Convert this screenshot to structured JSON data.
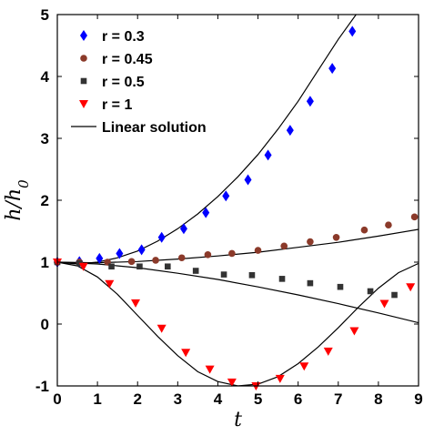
{
  "chart_data": {
    "type": "scatter",
    "xlabel": "t",
    "ylabel": "h/h0",
    "xlim": [
      0,
      9
    ],
    "ylim": [
      -1,
      5
    ],
    "xticks": [
      0,
      1,
      2,
      3,
      4,
      5,
      6,
      7,
      8,
      9
    ],
    "yticks": [
      -1,
      0,
      1,
      2,
      3,
      4,
      5
    ],
    "grid": false,
    "legend_position": "top-left",
    "series": [
      {
        "name": "r = 0.3",
        "marker": "diamond",
        "color": "#0000ff",
        "x": [
          0,
          0.55,
          1.05,
          1.55,
          2.1,
          2.6,
          3.15,
          3.7,
          4.2,
          4.75,
          5.25,
          5.8,
          6.3,
          6.85,
          7.35
        ],
        "y": [
          1.0,
          1.01,
          1.06,
          1.14,
          1.2,
          1.4,
          1.54,
          1.8,
          2.07,
          2.33,
          2.73,
          3.13,
          3.6,
          4.13,
          4.73
        ]
      },
      {
        "name": "r = 0.45",
        "marker": "circle",
        "color": "#8b3a2a",
        "x": [
          0,
          0.55,
          1.25,
          1.85,
          2.45,
          3.1,
          3.75,
          4.35,
          5.0,
          5.65,
          6.3,
          6.95,
          7.65,
          8.25,
          8.9
        ],
        "y": [
          1.0,
          1.0,
          1.0,
          1.01,
          1.03,
          1.07,
          1.12,
          1.14,
          1.19,
          1.26,
          1.33,
          1.4,
          1.52,
          1.6,
          1.73
        ]
      },
      {
        "name": "r = 0.5",
        "marker": "square",
        "color": "#333333",
        "x": [
          0,
          0.55,
          1.35,
          2.05,
          2.75,
          3.45,
          4.15,
          4.85,
          5.6,
          6.3,
          7.05,
          7.8,
          8.4
        ],
        "y": [
          1.0,
          0.98,
          0.93,
          0.93,
          0.93,
          0.86,
          0.8,
          0.79,
          0.73,
          0.66,
          0.6,
          0.53,
          0.47
        ]
      },
      {
        "name": "r = 1",
        "marker": "triangle-down",
        "color": "#ff0000",
        "x": [
          0,
          0.65,
          1.3,
          1.95,
          2.6,
          3.2,
          3.8,
          4.35,
          4.95,
          5.55,
          6.15,
          6.75,
          7.4,
          8.15,
          8.8
        ],
        "y": [
          1.0,
          0.93,
          0.65,
          0.34,
          -0.07,
          -0.46,
          -0.73,
          -0.94,
          -1.0,
          -0.88,
          -0.68,
          -0.44,
          -0.11,
          0.33,
          0.6
        ]
      },
      {
        "name": "Linear solution",
        "marker": "line",
        "color": "#000000",
        "curves": [
          {
            "x": [
              0,
              0.5,
              1,
              1.5,
              2,
              2.5,
              3,
              3.5,
              4,
              4.5,
              5,
              5.5,
              6,
              6.5,
              7,
              7.5,
              7.75
            ],
            "y": [
              1.0,
              0.97,
              1.0,
              1.07,
              1.18,
              1.34,
              1.54,
              1.78,
              2.06,
              2.38,
              2.74,
              3.15,
              3.6,
              4.1,
              4.6,
              5.05,
              5.25
            ]
          },
          {
            "x": [
              0,
              1,
              2,
              3,
              4,
              5,
              6,
              7,
              8,
              9
            ],
            "y": [
              1.0,
              0.99,
              1.01,
              1.05,
              1.1,
              1.16,
              1.24,
              1.32,
              1.42,
              1.53
            ]
          },
          {
            "x": [
              0,
              1,
              2,
              3,
              4,
              5,
              6,
              7,
              8,
              9
            ],
            "y": [
              1.0,
              0.97,
              0.91,
              0.82,
              0.72,
              0.6,
              0.47,
              0.33,
              0.18,
              0.02
            ]
          },
          {
            "x": [
              0,
              0.5,
              1,
              1.5,
              2,
              2.5,
              3,
              3.5,
              4,
              4.5,
              5,
              5.5,
              6,
              6.5,
              7,
              7.5,
              8,
              8.5,
              9
            ],
            "y": [
              1.0,
              0.94,
              0.76,
              0.48,
              0.14,
              -0.2,
              -0.51,
              -0.77,
              -0.93,
              -1.0,
              -0.97,
              -0.85,
              -0.64,
              -0.37,
              -0.06,
              0.27,
              0.58,
              0.83,
              0.98
            ]
          }
        ]
      }
    ]
  }
}
